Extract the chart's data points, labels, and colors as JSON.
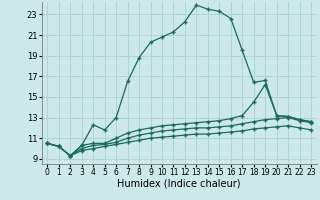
{
  "xlabel": "Humidex (Indice chaleur)",
  "background_color": "#cce8e8",
  "grid_color": "#aed4d4",
  "line_color": "#1a6b5a",
  "x_ticks": [
    0,
    1,
    2,
    3,
    4,
    5,
    6,
    7,
    8,
    9,
    10,
    11,
    12,
    13,
    14,
    15,
    16,
    17,
    18,
    19,
    20,
    21,
    22,
    23
  ],
  "y_ticks": [
    9,
    11,
    13,
    15,
    17,
    19,
    21,
    23
  ],
  "xlim": [
    -0.5,
    23.5
  ],
  "ylim": [
    8.5,
    24.2
  ],
  "line1_x": [
    0,
    1,
    2,
    3,
    4,
    5,
    6,
    7,
    8,
    9,
    10,
    11,
    12,
    13,
    14,
    15,
    16,
    17,
    18,
    19,
    20,
    21,
    22,
    23
  ],
  "line1_y": [
    10.5,
    10.2,
    9.3,
    10.3,
    12.3,
    11.8,
    13.0,
    16.5,
    18.8,
    20.3,
    20.8,
    21.3,
    22.3,
    23.9,
    23.5,
    23.3,
    22.6,
    19.5,
    16.4,
    16.6,
    13.2,
    13.1,
    12.8,
    12.6
  ],
  "line2_x": [
    0,
    1,
    2,
    3,
    4,
    5,
    6,
    7,
    8,
    9,
    10,
    11,
    12,
    13,
    14,
    15,
    16,
    17,
    18,
    19,
    20,
    21,
    22,
    23
  ],
  "line2_y": [
    10.5,
    10.2,
    9.3,
    10.3,
    10.5,
    10.5,
    11.0,
    11.5,
    11.8,
    12.0,
    12.2,
    12.3,
    12.4,
    12.5,
    12.6,
    12.7,
    12.9,
    13.2,
    14.5,
    16.2,
    13.2,
    13.1,
    12.8,
    12.6
  ],
  "line3_x": [
    0,
    1,
    2,
    3,
    4,
    5,
    6,
    7,
    8,
    9,
    10,
    11,
    12,
    13,
    14,
    15,
    16,
    17,
    18,
    19,
    20,
    21,
    22,
    23
  ],
  "line3_y": [
    10.5,
    10.2,
    9.3,
    10.0,
    10.3,
    10.4,
    10.6,
    11.0,
    11.3,
    11.5,
    11.7,
    11.8,
    11.9,
    12.0,
    12.0,
    12.1,
    12.2,
    12.4,
    12.6,
    12.8,
    12.9,
    13.0,
    12.7,
    12.5
  ],
  "line4_x": [
    0,
    1,
    2,
    3,
    4,
    5,
    6,
    7,
    8,
    9,
    10,
    11,
    12,
    13,
    14,
    15,
    16,
    17,
    18,
    19,
    20,
    21,
    22,
    23
  ],
  "line4_y": [
    10.5,
    10.2,
    9.3,
    9.8,
    10.0,
    10.2,
    10.4,
    10.6,
    10.8,
    11.0,
    11.1,
    11.2,
    11.3,
    11.4,
    11.4,
    11.5,
    11.6,
    11.7,
    11.9,
    12.0,
    12.1,
    12.2,
    12.0,
    11.8
  ],
  "xlabel_fontsize": 7,
  "tick_fontsize": 5.5,
  "ylabel_fontsize": 6
}
